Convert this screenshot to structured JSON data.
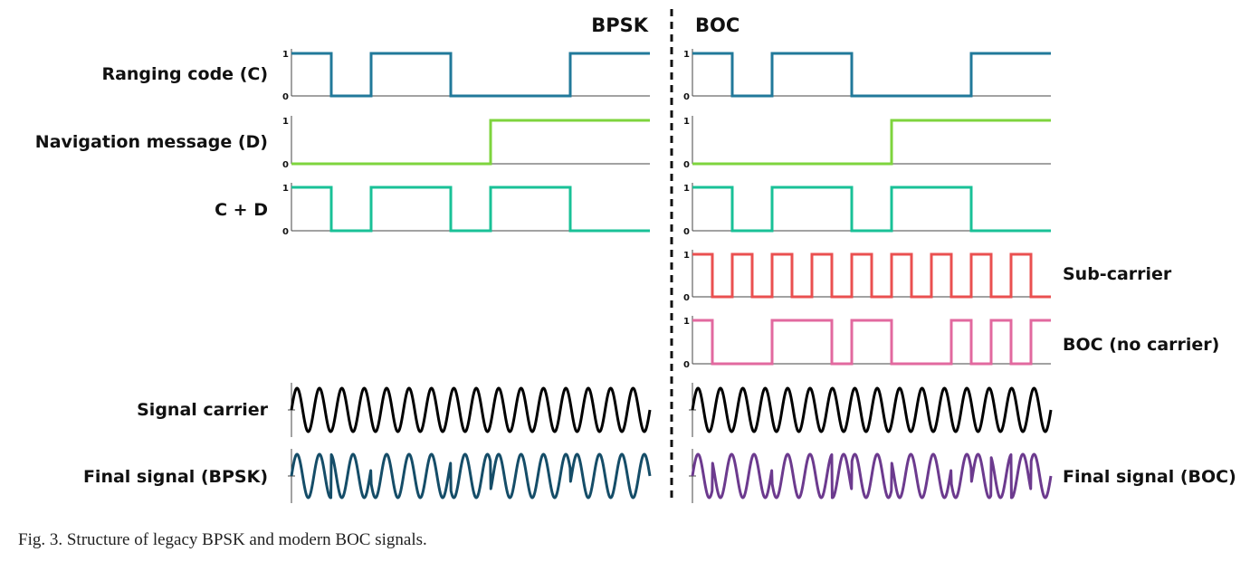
{
  "headers": {
    "bpsk": "BPSK",
    "boc": "BOC"
  },
  "left_labels": {
    "ranging_code": "Ranging code (C)",
    "navigation_message": "Navigation message (D)",
    "c_plus_d": "C + D",
    "signal_carrier": "Signal carrier",
    "final_bpsk": "Final signal (BPSK)"
  },
  "right_labels": {
    "sub_carrier": "Sub-carrier",
    "boc_no_carrier": "BOC (no carrier)",
    "final_boc": "Final signal (BOC)"
  },
  "tick_labels": {
    "high": "1",
    "low": "0"
  },
  "caption": "Fig. 3.    Structure of legacy BPSK and modern BOC signals.",
  "colors": {
    "ranging_code": "#21799a",
    "navigation_message": "#7ed43d",
    "c_plus_d": "#19c197",
    "sub_carrier": "#ea5050",
    "boc_no_carrier": "#e2699f",
    "carrier": "#000000",
    "final_bpsk": "#154d68",
    "final_boc": "#6c3a8e",
    "axis": "#444444"
  },
  "signals": {
    "ranging_code": [
      1,
      0,
      1,
      1,
      0,
      0,
      0,
      1,
      1
    ],
    "navigation_message": [
      0,
      0,
      0,
      0,
      0,
      1,
      1,
      1,
      1
    ],
    "c_plus_d": [
      1,
      0,
      1,
      1,
      0,
      1,
      1,
      0,
      0
    ],
    "sub_carrier": [
      1,
      0,
      1,
      0,
      1,
      0,
      1,
      0,
      1,
      0,
      1,
      0,
      1,
      0,
      1,
      0,
      1,
      0
    ],
    "boc_no_carrier": [
      1,
      0,
      0,
      0,
      1,
      1,
      1,
      0,
      1,
      1,
      0,
      0,
      0,
      1,
      0,
      1,
      0,
      1
    ],
    "carrier_cycles": 16
  }
}
